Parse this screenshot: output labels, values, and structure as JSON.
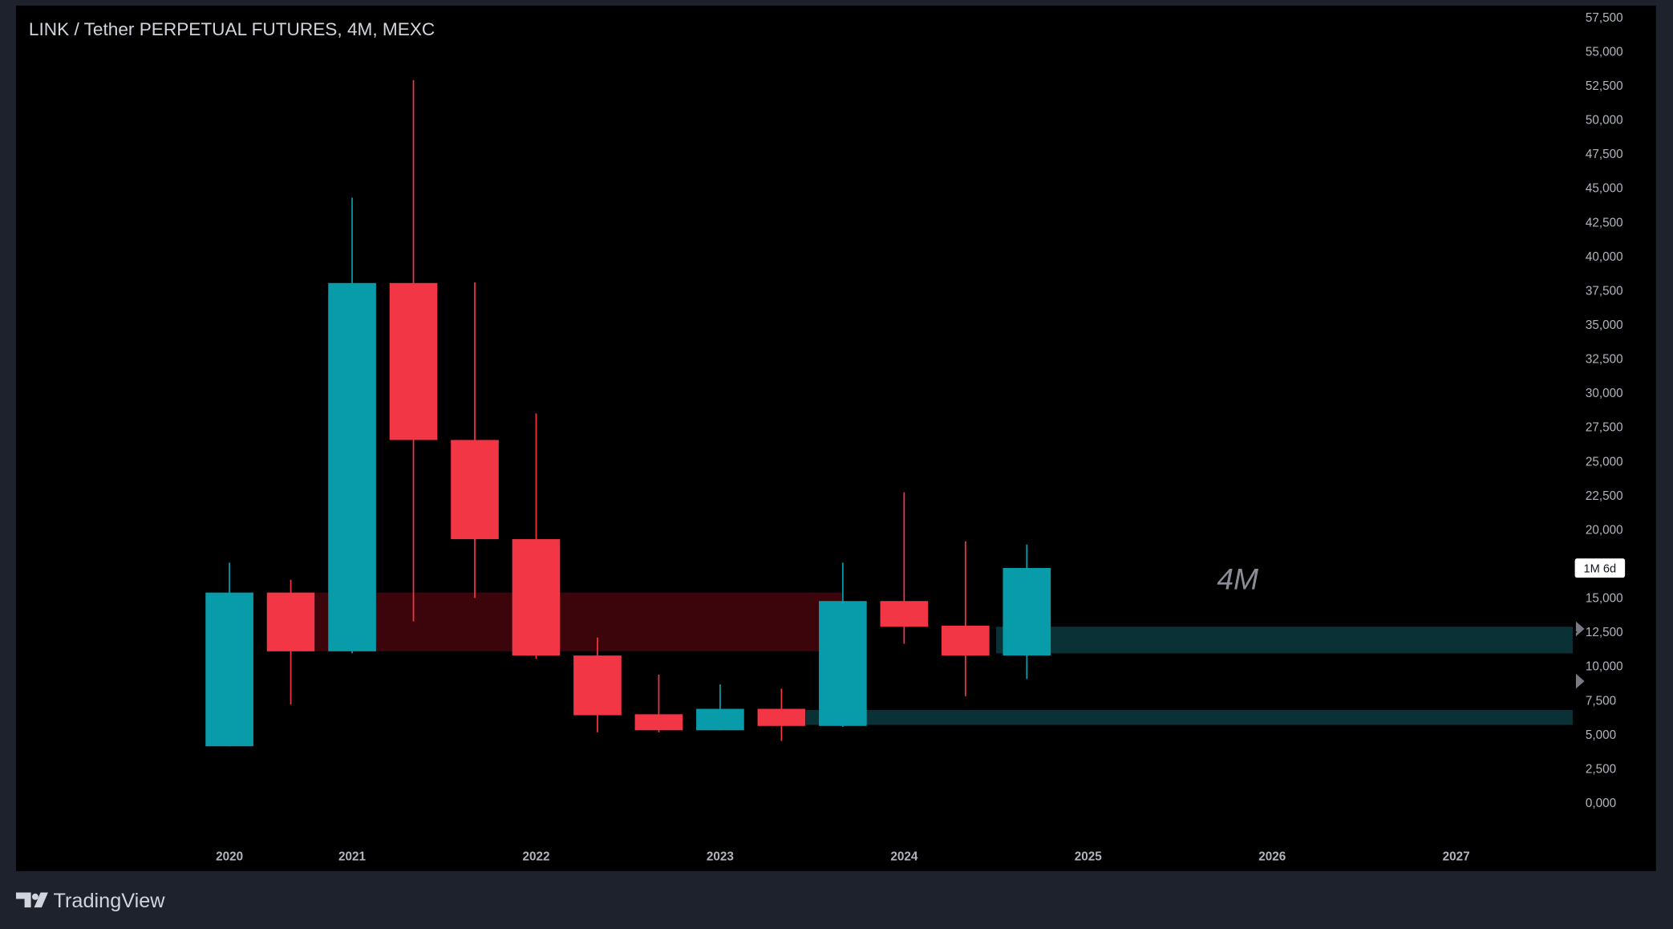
{
  "chart_data": {
    "type": "candlestick",
    "title": "LINK / Tether PERPETUAL FUTURES, 4M, MEXC",
    "x": [
      0,
      1,
      2,
      3,
      4,
      5,
      6,
      7,
      8,
      9,
      10,
      11,
      12,
      13
    ],
    "open": [
      4.14,
      15.39,
      11.09,
      38.05,
      26.56,
      19.3,
      10.78,
      6.48,
      5.31,
      6.88,
      5.63,
      14.77,
      12.97,
      10.78
    ],
    "high": [
      17.58,
      16.33,
      44.3,
      52.9,
      38.1,
      28.5,
      12.1,
      9.38,
      8.67,
      8.36,
      17.58,
      22.73,
      19.14,
      18.91
    ],
    "low": [
      4.14,
      7.19,
      10.94,
      13.28,
      15.0,
      10.55,
      5.16,
      5.16,
      5.31,
      4.53,
      5.55,
      11.64,
      7.81,
      9.06
    ],
    "close": [
      15.39,
      11.09,
      38.05,
      26.56,
      19.3,
      10.78,
      6.41,
      5.31,
      6.88,
      5.63,
      14.77,
      12.89,
      10.78,
      17.19
    ],
    "up_color": "#089cab",
    "down_color": "#f23645",
    "xlim": [
      -3.48,
      21.9
    ],
    "xticks": [
      {
        "value": 0,
        "label": "2020"
      },
      {
        "value": 2,
        "label": "2021"
      },
      {
        "value": 5,
        "label": "2022"
      },
      {
        "value": 8,
        "label": "2023"
      },
      {
        "value": 11,
        "label": "2024"
      },
      {
        "value": 14,
        "label": "2025"
      },
      {
        "value": 17,
        "label": "2026"
      },
      {
        "value": 20,
        "label": "2027"
      }
    ],
    "ylim": [
      -2.58,
      57.5
    ],
    "yticks": [
      {
        "value": 0,
        "label": "0,000"
      },
      {
        "value": 2.5,
        "label": "2,500"
      },
      {
        "value": 5,
        "label": "5,000"
      },
      {
        "value": 7.5,
        "label": "7,500"
      },
      {
        "value": 10,
        "label": "10,000"
      },
      {
        "value": 12.5,
        "label": "12,500"
      },
      {
        "value": 15,
        "label": "15,000"
      },
      {
        "value": 20,
        "label": "20,000"
      },
      {
        "value": 22.5,
        "label": "22,500"
      },
      {
        "value": 25,
        "label": "25,000"
      },
      {
        "value": 27.5,
        "label": "27,500"
      },
      {
        "value": 30,
        "label": "30,000"
      },
      {
        "value": 32.5,
        "label": "32,500"
      },
      {
        "value": 35,
        "label": "35,000"
      },
      {
        "value": 37.5,
        "label": "37,500"
      },
      {
        "value": 40,
        "label": "40,000"
      },
      {
        "value": 42.5,
        "label": "42,500"
      },
      {
        "value": 45,
        "label": "45,000"
      },
      {
        "value": 47.5,
        "label": "47,500"
      },
      {
        "value": 50,
        "label": "50,000"
      },
      {
        "value": 52.5,
        "label": "52,500"
      },
      {
        "value": 55,
        "label": "55,000"
      },
      {
        "value": 57.5,
        "label": "57,500"
      }
    ],
    "zones": [
      {
        "x0": 1.4,
        "x1": 10,
        "y0": 11.09,
        "y1": 15.39,
        "color": "#3b050b"
      },
      {
        "x0": 12.5,
        "x1": 21.9,
        "y0": 10.94,
        "y1": 12.89,
        "color": "#0a3236"
      },
      {
        "x0": 9.4,
        "x1": 21.9,
        "y0": 5.7,
        "y1": 6.8,
        "color": "#0a3236"
      }
    ],
    "annotation": "4M",
    "countdown": "1M 6d"
  },
  "footer": {
    "brand": "TradingView"
  }
}
